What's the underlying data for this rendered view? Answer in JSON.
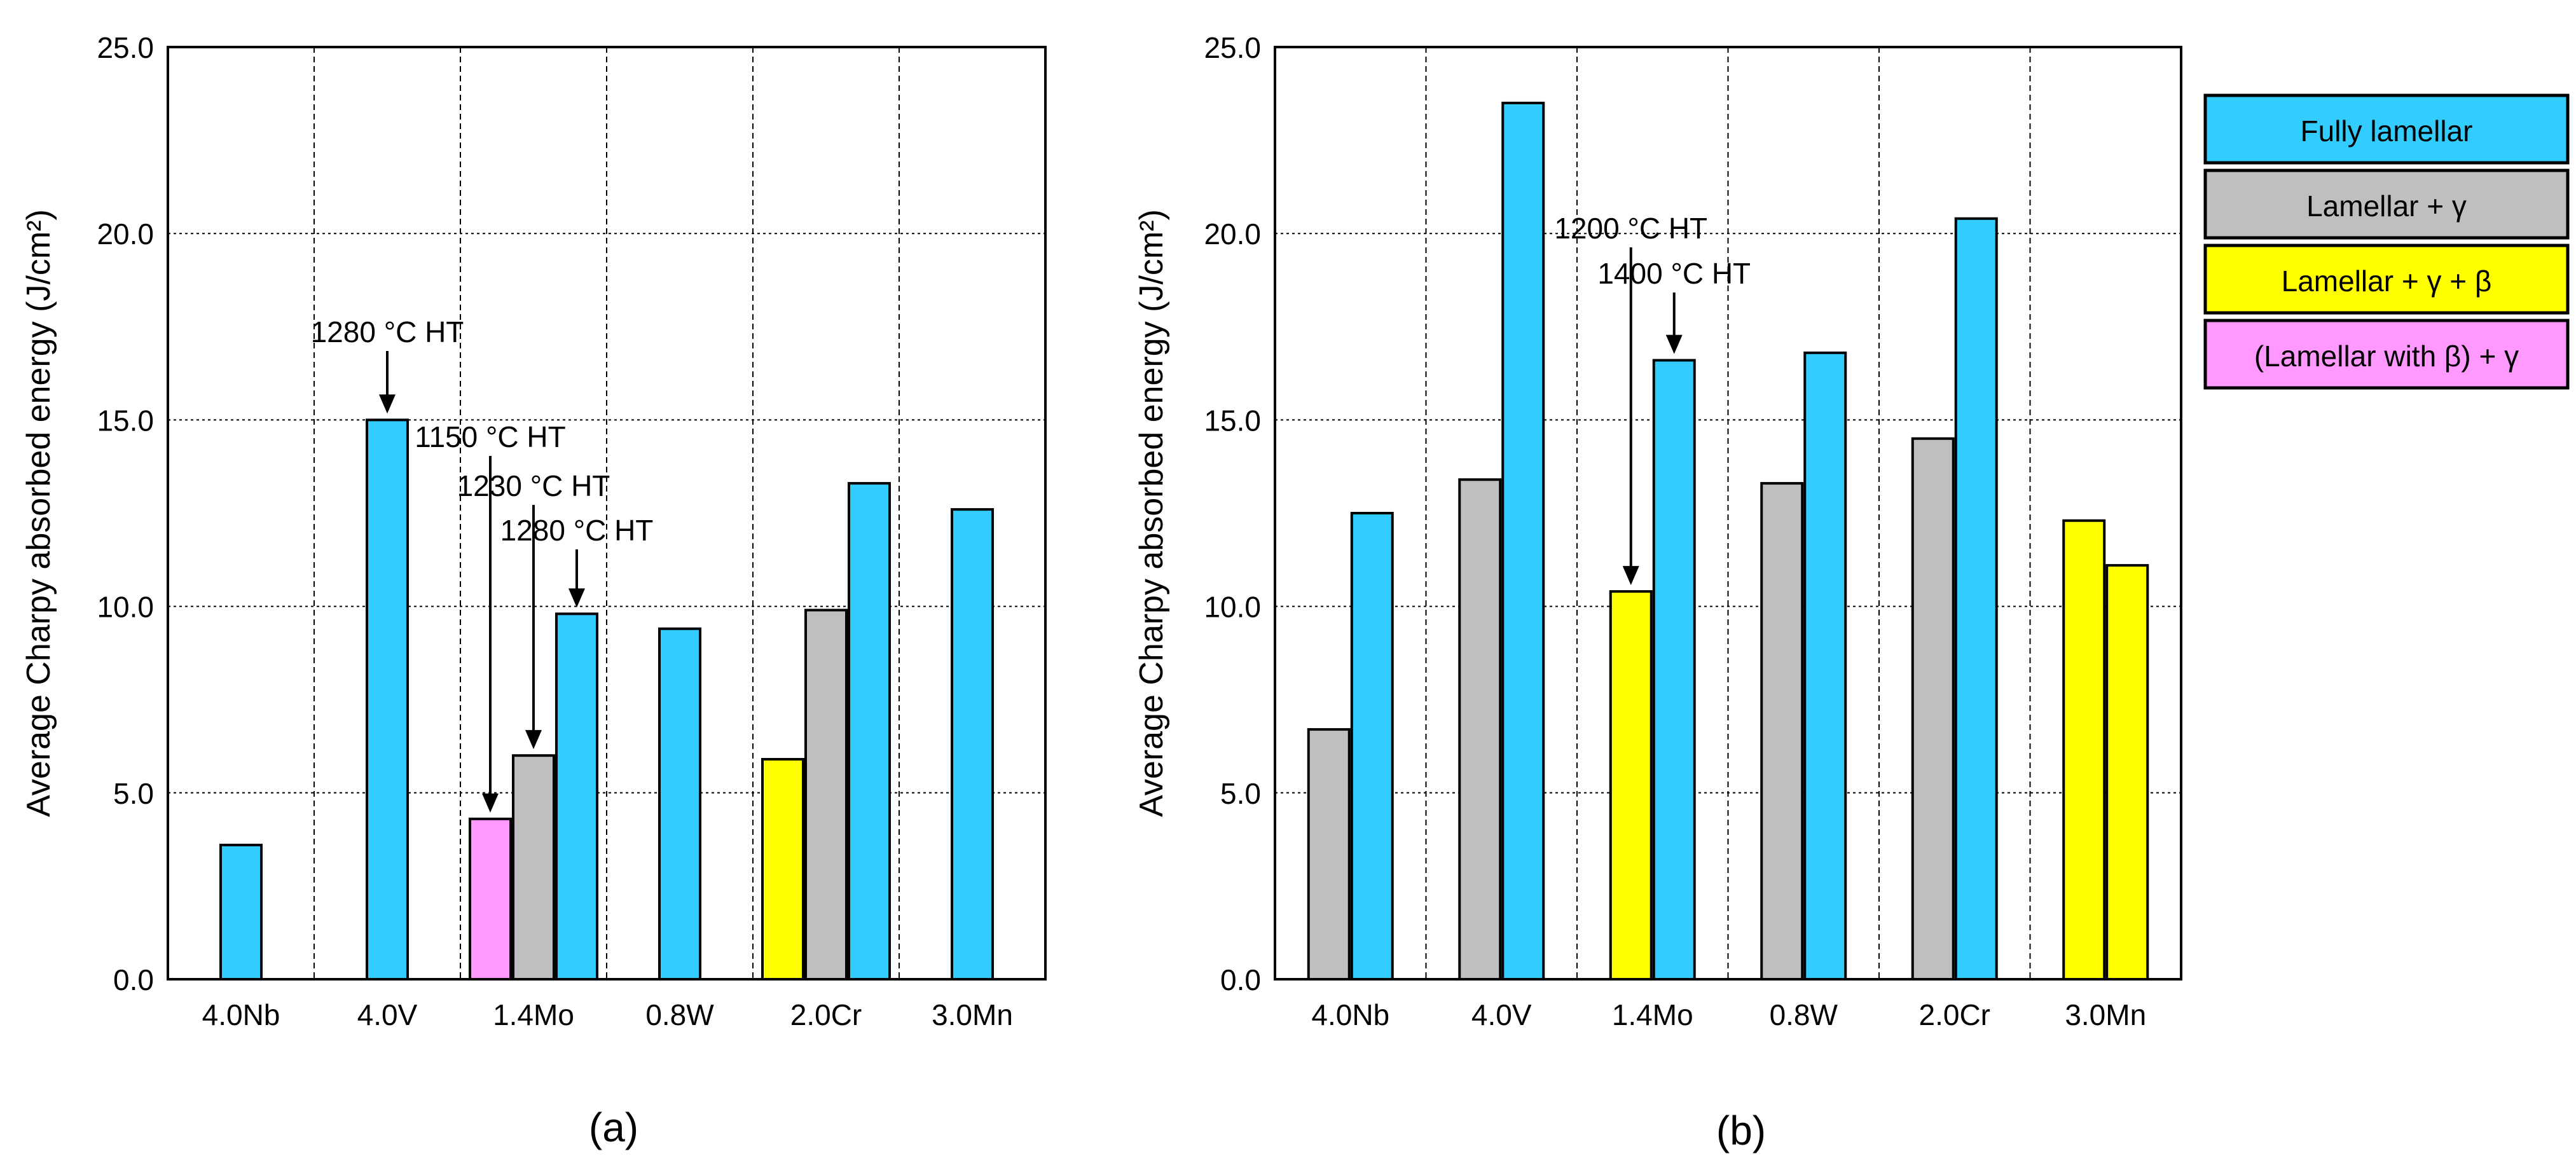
{
  "colors": {
    "fully_lamellar": "#33CCFF",
    "lamellar_gamma": "#BFBFBF",
    "lamellar_gamma_beta": "#FFFF00",
    "lamellar_beta_gamma": "#FF99FF"
  },
  "legend": [
    {
      "key": "fully_lamellar",
      "label": "Fully lamellar"
    },
    {
      "key": "lamellar_gamma",
      "label": "Lamellar  + γ"
    },
    {
      "key": "lamellar_gamma_beta",
      "label": "Lamellar  + γ + β"
    },
    {
      "key": "lamellar_beta_gamma",
      "label": "(Lamellar  with  β) + γ"
    }
  ],
  "chart_data": [
    {
      "type": "bar",
      "panel_label": "(a)",
      "ylabel": "Average  Charpy  absorbed  energy  (J/cm²)",
      "ylim": [
        0,
        25
      ],
      "yticks": [
        "0.0",
        "5.0",
        "10.0",
        "15.0",
        "20.0",
        "25.0"
      ],
      "grid": true,
      "categories": [
        "4.0Nb",
        "4.0V",
        "1.4Mo",
        "0.8W",
        "2.0Cr",
        "3.0Mn"
      ],
      "groups": [
        {
          "category": "4.0Nb",
          "bars": [
            {
              "key": "fully_lamellar",
              "value": 3.6
            }
          ]
        },
        {
          "category": "4.0V",
          "bars": [
            {
              "key": "fully_lamellar",
              "value": 15.0
            }
          ]
        },
        {
          "category": "1.4Mo",
          "bars": [
            {
              "key": "lamellar_beta_gamma",
              "value": 4.3
            },
            {
              "key": "lamellar_gamma",
              "value": 6.0
            },
            {
              "key": "fully_lamellar",
              "value": 9.8
            }
          ]
        },
        {
          "category": "0.8W",
          "bars": [
            {
              "key": "fully_lamellar",
              "value": 9.4
            }
          ]
        },
        {
          "category": "2.0Cr",
          "bars": [
            {
              "key": "lamellar_gamma_beta",
              "value": 5.9
            },
            {
              "key": "lamellar_gamma",
              "value": 9.9
            },
            {
              "key": "fully_lamellar",
              "value": 13.3
            }
          ]
        },
        {
          "category": "3.0Mn",
          "bars": [
            {
              "key": "fully_lamellar",
              "value": 12.6
            }
          ]
        }
      ],
      "annotations": [
        {
          "text": "1280 °C HT",
          "category": "4.0V",
          "bar": 0
        },
        {
          "text": "1150 °C HT",
          "category": "1.4Mo",
          "bar": 0
        },
        {
          "text": "1230 °C HT",
          "category": "1.4Mo",
          "bar": 1
        },
        {
          "text": "1280 °C HT",
          "category": "1.4Mo",
          "bar": 2
        }
      ]
    },
    {
      "type": "bar",
      "panel_label": "(b)",
      "ylabel": "Average  Charpy  absorbed  energy  (J/cm²)",
      "ylim": [
        0,
        25
      ],
      "yticks": [
        "0.0",
        "5.0",
        "10.0",
        "15.0",
        "20.0",
        "25.0"
      ],
      "grid": true,
      "categories": [
        "4.0Nb",
        "4.0V",
        "1.4Mo",
        "0.8W",
        "2.0Cr",
        "3.0Mn"
      ],
      "groups": [
        {
          "category": "4.0Nb",
          "bars": [
            {
              "key": "lamellar_gamma",
              "value": 6.7
            },
            {
              "key": "fully_lamellar",
              "value": 12.5
            }
          ]
        },
        {
          "category": "4.0V",
          "bars": [
            {
              "key": "lamellar_gamma",
              "value": 13.4
            },
            {
              "key": "fully_lamellar",
              "value": 23.5
            }
          ]
        },
        {
          "category": "1.4Mo",
          "bars": [
            {
              "key": "lamellar_gamma_beta",
              "value": 10.4
            },
            {
              "key": "fully_lamellar",
              "value": 16.6
            }
          ]
        },
        {
          "category": "0.8W",
          "bars": [
            {
              "key": "lamellar_gamma",
              "value": 13.3
            },
            {
              "key": "fully_lamellar",
              "value": 16.8
            }
          ]
        },
        {
          "category": "2.0Cr",
          "bars": [
            {
              "key": "lamellar_gamma",
              "value": 14.5
            },
            {
              "key": "fully_lamellar",
              "value": 20.4
            }
          ]
        },
        {
          "category": "3.0Mn",
          "bars": [
            {
              "key": "lamellar_gamma_beta",
              "value": 12.3
            },
            {
              "key": "lamellar_gamma_beta",
              "value": 11.1
            }
          ]
        }
      ],
      "annotations": [
        {
          "text": "1200 °C HT",
          "category": "1.4Mo",
          "bar": 0
        },
        {
          "text": "1400 °C HT",
          "category": "1.4Mo",
          "bar": 1
        }
      ]
    }
  ]
}
